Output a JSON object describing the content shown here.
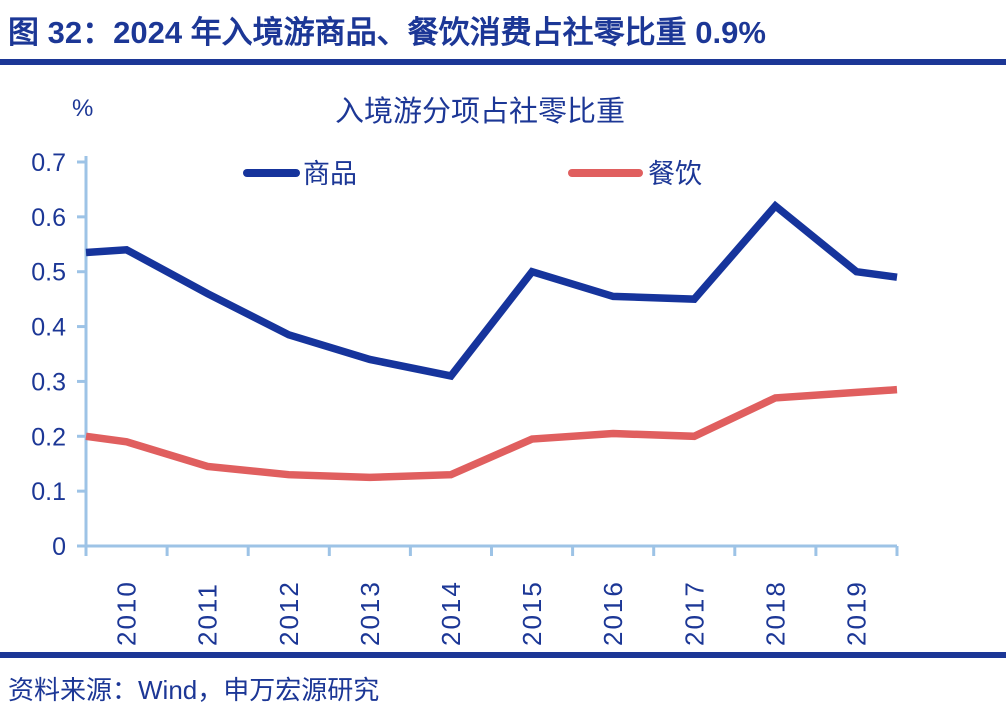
{
  "header": {
    "title": "图 32：2024 年入境游商品、餐饮消费占社零比重 0.9%"
  },
  "chart": {
    "title": "入境游分项占社零比重",
    "unit_label": "%"
  },
  "chart_data": {
    "type": "line",
    "title": "入境游分项占社零比重",
    "categories": [
      "2010",
      "2011",
      "2012",
      "2013",
      "2014",
      "2015",
      "2016",
      "2017",
      "2018",
      "2019"
    ],
    "series": [
      {
        "name": "商品",
        "color": "#16349c",
        "values": [
          0.54,
          0.46,
          0.385,
          0.34,
          0.31,
          0.5,
          0.455,
          0.45,
          0.62,
          0.5
        ],
        "edge_left": 0.535,
        "edge_right": 0.49
      },
      {
        "name": "餐饮",
        "color": "#e05f5f",
        "values": [
          0.19,
          0.145,
          0.13,
          0.125,
          0.13,
          0.195,
          0.205,
          0.2,
          0.27,
          0.28
        ],
        "edge_left": 0.2,
        "edge_right": 0.285
      }
    ],
    "xlabel": "",
    "ylabel": "%",
    "ylim": [
      0,
      0.7
    ],
    "y_tick_step": 0.1,
    "y_tick_labels": [
      "0.7",
      "0.6",
      "0.5",
      "0.4",
      "0.3",
      "0.2",
      "0.1",
      "0"
    ],
    "grid": false,
    "legend_position": "top-center",
    "axis_color": "#9dc3e6",
    "text_color": "#1c3796"
  },
  "footer": {
    "source": "资料来源：Wind，申万宏源研究"
  }
}
